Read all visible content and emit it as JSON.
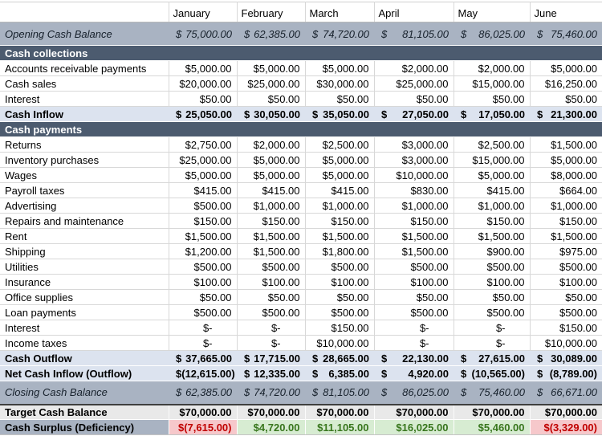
{
  "table": {
    "corner": "",
    "months": [
      "January",
      "February",
      "March",
      "April",
      "May",
      "June"
    ],
    "currency_symbol": "$",
    "rows": [
      {
        "style": "band",
        "label": "Opening Cash Balance",
        "currency": "$",
        "values": [
          "75,000.00",
          "62,385.00",
          "74,720.00",
          "81,105.00",
          "86,025.00",
          "75,460.00"
        ]
      },
      {
        "style": "section",
        "label": "Cash collections"
      },
      {
        "style": "detail",
        "label": "Accounts receivable payments",
        "values": [
          "$5,000.00",
          "$5,000.00",
          "$5,000.00",
          "$2,000.00",
          "$2,000.00",
          "$5,000.00"
        ]
      },
      {
        "style": "detail",
        "label": "Cash sales",
        "values": [
          "$20,000.00",
          "$25,000.00",
          "$30,000.00",
          "$25,000.00",
          "$15,000.00",
          "$16,250.00"
        ]
      },
      {
        "style": "detail",
        "label": "Interest",
        "values": [
          "$50.00",
          "$50.00",
          "$50.00",
          "$50.00",
          "$50.00",
          "$50.00"
        ]
      },
      {
        "style": "subtotal",
        "label": "Cash Inflow",
        "currency": "$",
        "values": [
          "25,050.00",
          "30,050.00",
          "35,050.00",
          "27,050.00",
          "17,050.00",
          "21,300.00"
        ]
      },
      {
        "style": "section",
        "label": "Cash payments"
      },
      {
        "style": "detail",
        "label": "Returns",
        "values": [
          "$2,750.00",
          "$2,000.00",
          "$2,500.00",
          "$3,000.00",
          "$2,500.00",
          "$1,500.00"
        ]
      },
      {
        "style": "detail",
        "label": "Inventory purchases",
        "values": [
          "$25,000.00",
          "$5,000.00",
          "$5,000.00",
          "$3,000.00",
          "$15,000.00",
          "$5,000.00"
        ]
      },
      {
        "style": "detail",
        "label": "Wages",
        "values": [
          "$5,000.00",
          "$5,000.00",
          "$5,000.00",
          "$10,000.00",
          "$5,000.00",
          "$8,000.00"
        ]
      },
      {
        "style": "detail",
        "label": "Payroll taxes",
        "values": [
          "$415.00",
          "$415.00",
          "$415.00",
          "$830.00",
          "$415.00",
          "$664.00"
        ]
      },
      {
        "style": "detail",
        "label": "Advertising",
        "values": [
          "$500.00",
          "$1,000.00",
          "$1,000.00",
          "$1,000.00",
          "$1,000.00",
          "$1,000.00"
        ]
      },
      {
        "style": "detail",
        "label": "Repairs and maintenance",
        "values": [
          "$150.00",
          "$150.00",
          "$150.00",
          "$150.00",
          "$150.00",
          "$150.00"
        ]
      },
      {
        "style": "detail",
        "label": "Rent",
        "values": [
          "$1,500.00",
          "$1,500.00",
          "$1,500.00",
          "$1,500.00",
          "$1,500.00",
          "$1,500.00"
        ]
      },
      {
        "style": "detail",
        "label": "Shipping",
        "values": [
          "$1,200.00",
          "$1,500.00",
          "$1,800.00",
          "$1,500.00",
          "$900.00",
          "$975.00"
        ]
      },
      {
        "style": "detail",
        "label": "Utilities",
        "values": [
          "$500.00",
          "$500.00",
          "$500.00",
          "$500.00",
          "$500.00",
          "$500.00"
        ]
      },
      {
        "style": "detail",
        "label": "Insurance",
        "values": [
          "$100.00",
          "$100.00",
          "$100.00",
          "$100.00",
          "$100.00",
          "$100.00"
        ]
      },
      {
        "style": "detail",
        "label": "Office supplies",
        "values": [
          "$50.00",
          "$50.00",
          "$50.00",
          "$50.00",
          "$50.00",
          "$50.00"
        ]
      },
      {
        "style": "detail",
        "label": "Loan payments",
        "values": [
          "$500.00",
          "$500.00",
          "$500.00",
          "$500.00",
          "$500.00",
          "$500.00"
        ]
      },
      {
        "style": "detail",
        "label": "Interest",
        "values": [
          "$-",
          "$-",
          "$150.00",
          "$-",
          "$-",
          "$150.00"
        ]
      },
      {
        "style": "detail",
        "label": "Income taxes",
        "values": [
          "$-",
          "$-",
          "$10,000.00",
          "$-",
          "$-",
          "$10,000.00"
        ]
      },
      {
        "style": "subtotal",
        "label": "Cash Outflow",
        "currency": "$",
        "values": [
          "37,665.00",
          "17,715.00",
          "28,665.00",
          "22,130.00",
          "27,615.00",
          "30,089.00"
        ]
      },
      {
        "style": "subtotal",
        "label": "Net Cash Inflow (Outflow)",
        "currency": "$",
        "values": [
          "(12,615.00)",
          "12,335.00",
          "6,385.00",
          "4,920.00",
          "(10,565.00)",
          "(8,789.00)"
        ]
      },
      {
        "style": "band",
        "label": "Closing Cash Balance",
        "currency": "$",
        "values": [
          "62,385.00",
          "74,720.00",
          "81,105.00",
          "86,025.00",
          "75,460.00",
          "66,671.00"
        ]
      },
      {
        "style": "target",
        "label": "Target Cash Balance",
        "values": [
          "$70,000.00",
          "$70,000.00",
          "$70,000.00",
          "$70,000.00",
          "$70,000.00",
          "$70,000.00"
        ]
      },
      {
        "style": "surplus",
        "label": "Cash Surplus (Deficiency)",
        "values": [
          "$(7,615.00)",
          "$4,720.00",
          "$11,105.00",
          "$16,025.00",
          "$5,460.00",
          "$(3,329.00)"
        ],
        "signs": [
          "neg",
          "pos",
          "pos",
          "pos",
          "pos",
          "neg"
        ]
      }
    ]
  },
  "colors": {
    "band_bg": "#a9b3c2",
    "section_bg": "#4c5b6f",
    "section_text": "#ffffff",
    "subtotal_bg": "#dce3ef",
    "target_bg": "#e9e9e9",
    "positive_bg": "#d7ecd2",
    "positive_text": "#38761d",
    "negative_bg": "#f6c8cb",
    "negative_text": "#c00000",
    "grid_line": "#d8d8d8"
  }
}
